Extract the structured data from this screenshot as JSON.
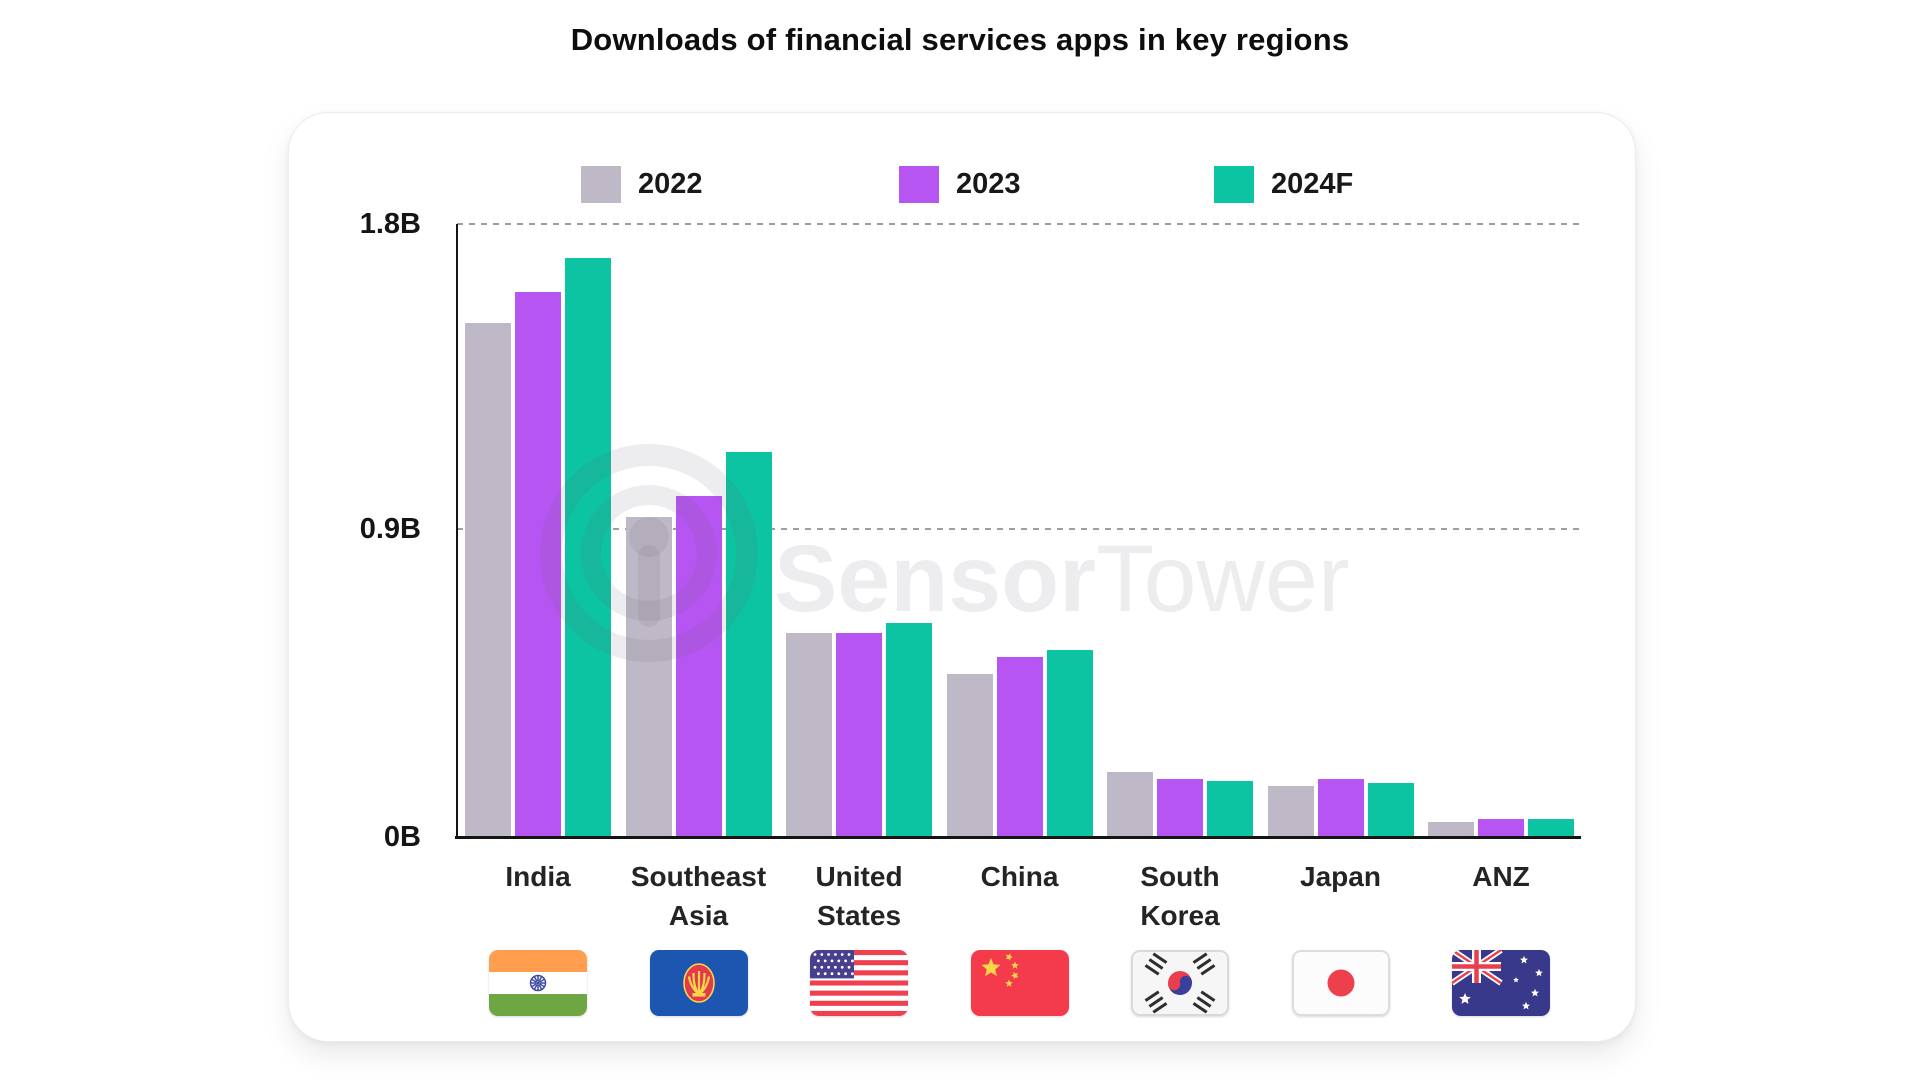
{
  "title": "Downloads of financial services apps in key regions",
  "watermark": {
    "bold": "Sensor",
    "light": "Tower"
  },
  "chart": {
    "y_ticks": [
      "1.8B",
      "0.9B",
      "0B"
    ]
  },
  "chart_data": {
    "type": "bar",
    "title": "Downloads of financial services apps in key regions",
    "categories": [
      "India",
      "Southeast Asia",
      "United States",
      "China",
      "South Korea",
      "Japan",
      "ANZ"
    ],
    "category_lines": [
      [
        "India"
      ],
      [
        "Southeast",
        "Asia"
      ],
      [
        "United",
        "States"
      ],
      [
        "China"
      ],
      [
        "South",
        "Korea"
      ],
      [
        "Japan"
      ],
      [
        "ANZ"
      ]
    ],
    "series": [
      {
        "name": "2022",
        "color": "#bfb8c6",
        "values": [
          1.51,
          0.94,
          0.6,
          0.48,
          0.19,
          0.15,
          0.045
        ]
      },
      {
        "name": "2023",
        "color": "#b655f1",
        "values": [
          1.6,
          1.0,
          0.6,
          0.53,
          0.17,
          0.17,
          0.053
        ]
      },
      {
        "name": "2024F",
        "color": "#0cc3a2",
        "values": [
          1.7,
          1.13,
          0.63,
          0.55,
          0.165,
          0.16,
          0.052
        ]
      }
    ],
    "unit": "B",
    "ylim": [
      0,
      1.8
    ],
    "gridlines": [
      0.9,
      1.8
    ],
    "grid_style": "dotted",
    "legend_position": "top",
    "flags": [
      "india",
      "asean",
      "united-states",
      "china",
      "south-korea",
      "japan",
      "australia"
    ]
  }
}
